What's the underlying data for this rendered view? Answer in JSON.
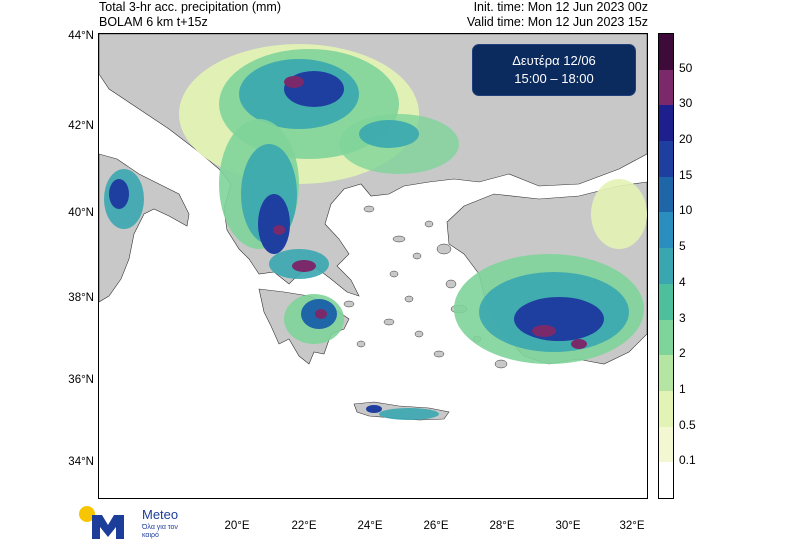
{
  "header": {
    "title": "Total 3-hr acc. precipitation (mm)",
    "model": "BOLAM 6 km t+15z",
    "init_time": "Init. time: Mon 12 Jun 2023 00z",
    "valid_time": "Valid time: Mon 12 Jun 2023 15z"
  },
  "badge": {
    "day": "Δευτέρα 12/06",
    "hours": "15:00 – 18:00"
  },
  "axes": {
    "lat_labels": [
      "44°N",
      "42°N",
      "40°N",
      "38°N",
      "36°N",
      "34°N"
    ],
    "lon_labels": [
      "20°E",
      "22°E",
      "24°E",
      "26°E",
      "28°E",
      "30°E",
      "32°E"
    ]
  },
  "colorbar": {
    "levels": [
      "50",
      "30",
      "20",
      "15",
      "10",
      "5",
      "4",
      "3",
      "2",
      "1",
      "0.5",
      "0.1"
    ],
    "colors": [
      "#3e0a3a",
      "#7a2a6a",
      "#1c1f8c",
      "#1e3fa0",
      "#1e66a8",
      "#2a8fbf",
      "#3aa7b0",
      "#4dbf9c",
      "#7fd49a",
      "#b5e5a2",
      "#e3f3b5",
      "#f3f8d2",
      "#ffffff"
    ]
  },
  "logo": {
    "name": "Meteo",
    "tagline": "Όλα για τον καιρό",
    "colors": {
      "sun": "#f7c600",
      "mark": "#1d3d9a"
    }
  },
  "map": {
    "land_color": "#c8c8c8",
    "sea_color": "#ffffff"
  }
}
